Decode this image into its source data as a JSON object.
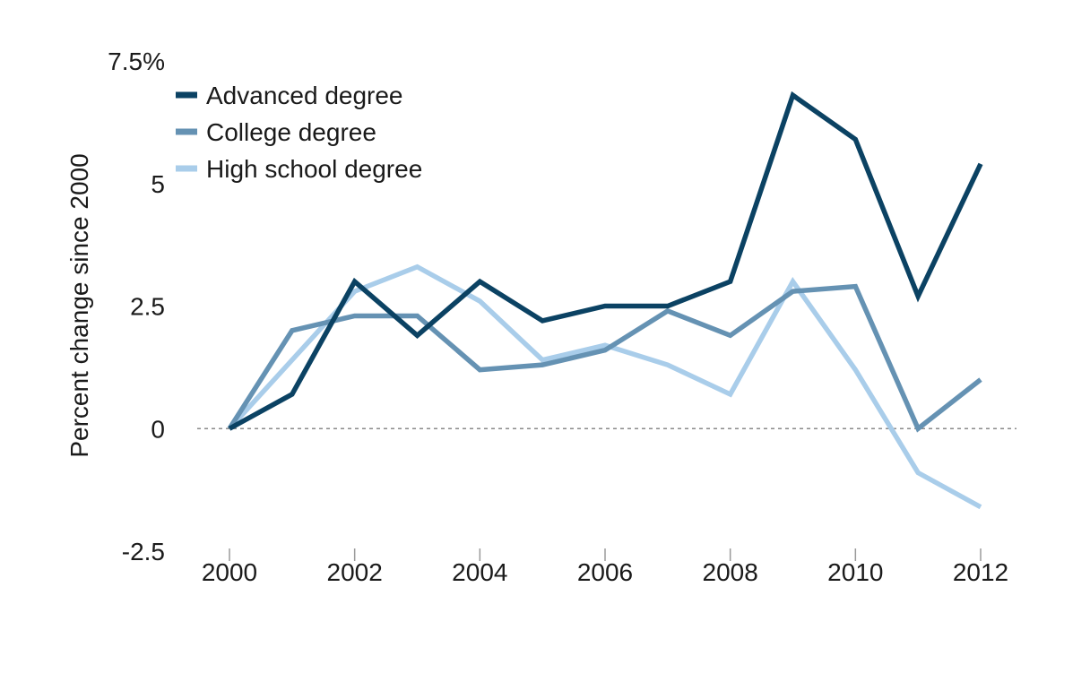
{
  "chart_data": {
    "type": "line",
    "title": "",
    "xlabel": "",
    "ylabel": "Percent change since 2000",
    "x": [
      2000,
      2001,
      2002,
      2003,
      2004,
      2005,
      2006,
      2007,
      2008,
      2009,
      2010,
      2011,
      2012
    ],
    "xticks": [
      "2000",
      "2002",
      "2004",
      "2006",
      "2008",
      "2010",
      "2012"
    ],
    "xtick_values": [
      2000,
      2002,
      2004,
      2006,
      2008,
      2010,
      2012
    ],
    "yticks": [
      "-2.5",
      "0",
      "2.5",
      "5",
      "7.5%"
    ],
    "ytick_values": [
      -2.5,
      0,
      2.5,
      5,
      7.5
    ],
    "xlim": [
      1999.5,
      2012.6
    ],
    "ylim": [
      -2.5,
      7.5
    ],
    "grid": false,
    "zero_line": "dotted",
    "legend_position": "top-left",
    "series": [
      {
        "name": "Advanced degree",
        "color": "#0b4263",
        "values": [
          0.0,
          0.7,
          3.0,
          1.9,
          3.0,
          2.2,
          2.5,
          2.5,
          3.0,
          6.8,
          5.9,
          2.7,
          5.4
        ]
      },
      {
        "name": "College degree",
        "color": "#6592b3",
        "values": [
          0.0,
          2.0,
          2.3,
          2.3,
          1.2,
          1.3,
          1.6,
          2.4,
          1.9,
          2.8,
          2.9,
          0.0,
          1.0
        ]
      },
      {
        "name": "High school degree",
        "color": "#a9cdea",
        "values": [
          0.0,
          1.4,
          2.8,
          3.3,
          2.6,
          1.4,
          1.7,
          1.3,
          0.7,
          3.0,
          1.2,
          -0.9,
          -1.6
        ]
      }
    ]
  }
}
